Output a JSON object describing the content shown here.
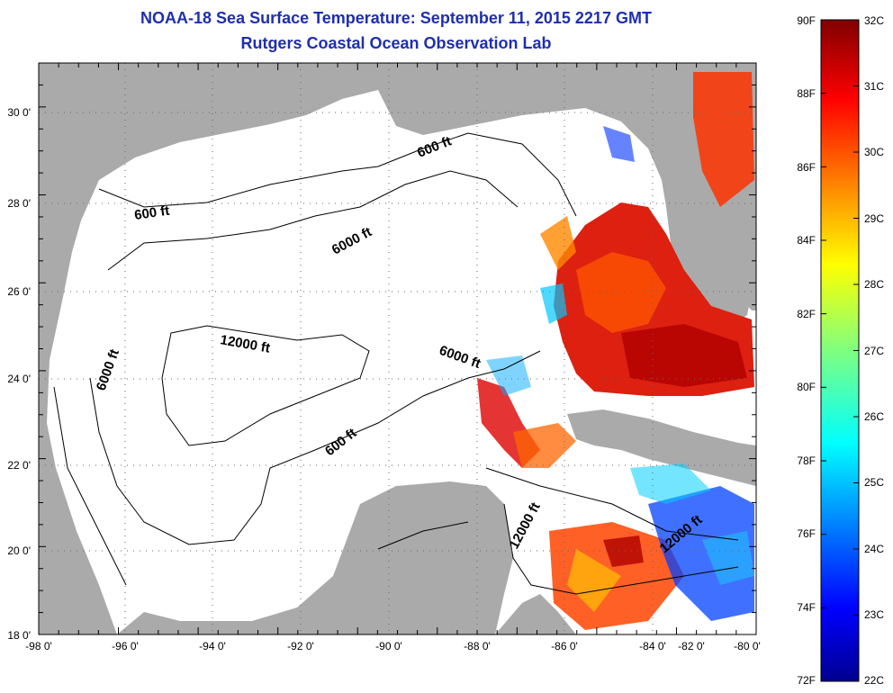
{
  "title": {
    "line1": "NOAA-18 Sea Surface Temperature:  September 11, 2015 2217 GMT",
    "line2": "Rutgers Coastal Ocean Observation Lab"
  },
  "map": {
    "region": "Gulf of Mexico",
    "lon_range": [
      -98,
      -80
    ],
    "lat_range": [
      18,
      31
    ],
    "x_ticks": [
      "-98 0'",
      "-96 0'",
      "-94 0'",
      "-92 0'",
      "-90 0'",
      "-88 0'",
      "-86 0'",
      "-84 0'",
      "-82 0'",
      "-80 0'"
    ],
    "y_ticks": [
      "18 0'",
      "20 0'",
      "22 0'",
      "24 0'",
      "26 0'",
      "28 0'",
      "30 0'"
    ],
    "contour_labels": [
      {
        "text": "600 ft"
      },
      {
        "text": "600 ft"
      },
      {
        "text": "6000 ft"
      },
      {
        "text": "6000 ft"
      },
      {
        "text": "6000 ft"
      },
      {
        "text": "12000 ft"
      },
      {
        "text": "600 ft"
      },
      {
        "text": "12000 ft"
      },
      {
        "text": "12000 ft"
      }
    ],
    "colors": {
      "land": "#aaaaaa",
      "ocean_no_data": "#ffffff",
      "grid": "#444444"
    }
  },
  "colorbar": {
    "f_labels": [
      "90F",
      "88F",
      "86F",
      "84F",
      "82F",
      "80F",
      "78F",
      "76F",
      "74F",
      "72F"
    ],
    "c_labels": [
      "32C",
      "31C",
      "30C",
      "29C",
      "28C",
      "27C",
      "26C",
      "25C",
      "24C",
      "23C",
      "22C"
    ],
    "range_c": [
      22,
      32
    ],
    "range_f": [
      72,
      90
    ],
    "colormap": "jet"
  }
}
